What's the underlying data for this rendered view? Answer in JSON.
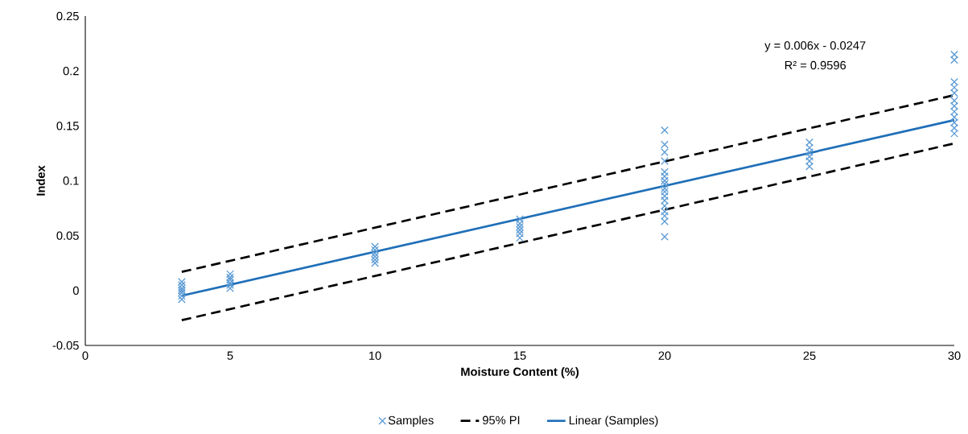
{
  "chart_data": {
    "type": "scatter",
    "xlabel": "Moisture Content (%)",
    "ylabel": "Index",
    "xlim": [
      0,
      30
    ],
    "ylim": [
      -0.05,
      0.25
    ],
    "xticks": [
      0,
      5,
      10,
      15,
      20,
      25,
      30
    ],
    "yticks": [
      -0.05,
      0,
      0.05,
      0.1,
      0.15,
      0.2,
      0.25
    ],
    "grid": false,
    "legend": "bottom",
    "annotations": [
      "y = 0.006x - 0.0247",
      "R² = 0.9596"
    ],
    "series": [
      {
        "name": "Samples",
        "marker": "cross",
        "color": "#5b9bd5",
        "x": [
          3.33,
          3.33,
          3.33,
          3.33,
          3.33,
          3.33,
          3.33,
          5,
          5,
          5,
          5,
          5,
          5,
          10,
          10,
          10,
          10,
          10,
          10,
          15,
          15,
          15,
          15,
          15,
          15,
          20,
          20,
          20,
          20,
          20,
          20,
          20,
          20,
          20,
          20,
          20,
          20,
          20,
          20,
          20,
          20,
          20,
          25,
          25,
          25,
          25,
          25,
          25,
          30,
          30,
          30,
          30,
          30,
          30,
          30,
          30,
          30,
          30,
          30,
          30
        ],
        "values": [
          -0.008,
          -0.005,
          -0.002,
          0,
          0.002,
          0.005,
          0.008,
          0.002,
          0.005,
          0.007,
          0.01,
          0.012,
          0.015,
          0.025,
          0.028,
          0.031,
          0.034,
          0.037,
          0.04,
          0.048,
          0.052,
          0.055,
          0.058,
          0.061,
          0.065,
          0.049,
          0.063,
          0.068,
          0.072,
          0.077,
          0.082,
          0.086,
          0.09,
          0.093,
          0.097,
          0.1,
          0.104,
          0.108,
          0.118,
          0.126,
          0.133,
          0.146,
          0.113,
          0.118,
          0.122,
          0.126,
          0.13,
          0.135,
          0.143,
          0.148,
          0.153,
          0.158,
          0.163,
          0.168,
          0.173,
          0.18,
          0.185,
          0.19,
          0.21,
          0.215
        ]
      },
      {
        "name": "95% PI",
        "type": "line",
        "line_style": "dashed",
        "color": "#000000",
        "x": [
          3.33,
          30
        ],
        "values": [
          0.017,
          0.178
        ]
      },
      {
        "type": "line",
        "line_style": "dashed",
        "color": "#000000",
        "x": [
          3.33,
          30
        ],
        "values": [
          -0.027,
          0.134
        ]
      },
      {
        "name": "Linear (Samples)",
        "type": "line",
        "line_style": "solid",
        "color": "#1f6fb8",
        "x": [
          3.33,
          30
        ],
        "values": [
          -0.0047,
          0.1553
        ]
      }
    ]
  }
}
